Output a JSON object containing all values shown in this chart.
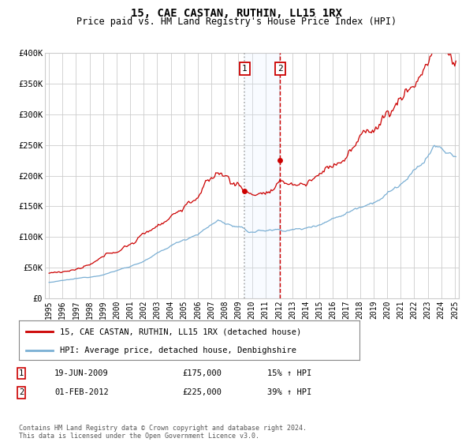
{
  "title": "15, CAE CASTAN, RUTHIN, LL15 1RX",
  "subtitle": "Price paid vs. HM Land Registry's House Price Index (HPI)",
  "hpi_color": "#7aafd4",
  "price_color": "#cc0000",
  "sale1_vline_color": "#aaaaaa",
  "sale2_vline_color": "#cc0000",
  "ylim": [
    0,
    400000
  ],
  "yticks": [
    0,
    50000,
    100000,
    150000,
    200000,
    250000,
    300000,
    350000,
    400000
  ],
  "ytick_labels": [
    "£0",
    "£50K",
    "£100K",
    "£150K",
    "£200K",
    "£250K",
    "£300K",
    "£350K",
    "£400K"
  ],
  "sale1_date": 2009.47,
  "sale1_price": 175000,
  "sale1_label": "1",
  "sale1_text": "19-JUN-2009",
  "sale1_amount": "£175,000",
  "sale1_hpi": "15% ↑ HPI",
  "sale2_date": 2012.08,
  "sale2_price": 225000,
  "sale2_label": "2",
  "sale2_text": "01-FEB-2012",
  "sale2_amount": "£225,000",
  "sale2_hpi": "39% ↑ HPI",
  "legend_line1": "15, CAE CASTAN, RUTHIN, LL15 1RX (detached house)",
  "legend_line2": "HPI: Average price, detached house, Denbighshire",
  "footnote": "Contains HM Land Registry data © Crown copyright and database right 2024.\nThis data is licensed under the Open Government Licence v3.0.",
  "background_color": "#ffffff",
  "grid_color": "#cccccc",
  "shade_color": "#ddeeff",
  "xlim_left": 1994.7,
  "xlim_right": 2025.3
}
